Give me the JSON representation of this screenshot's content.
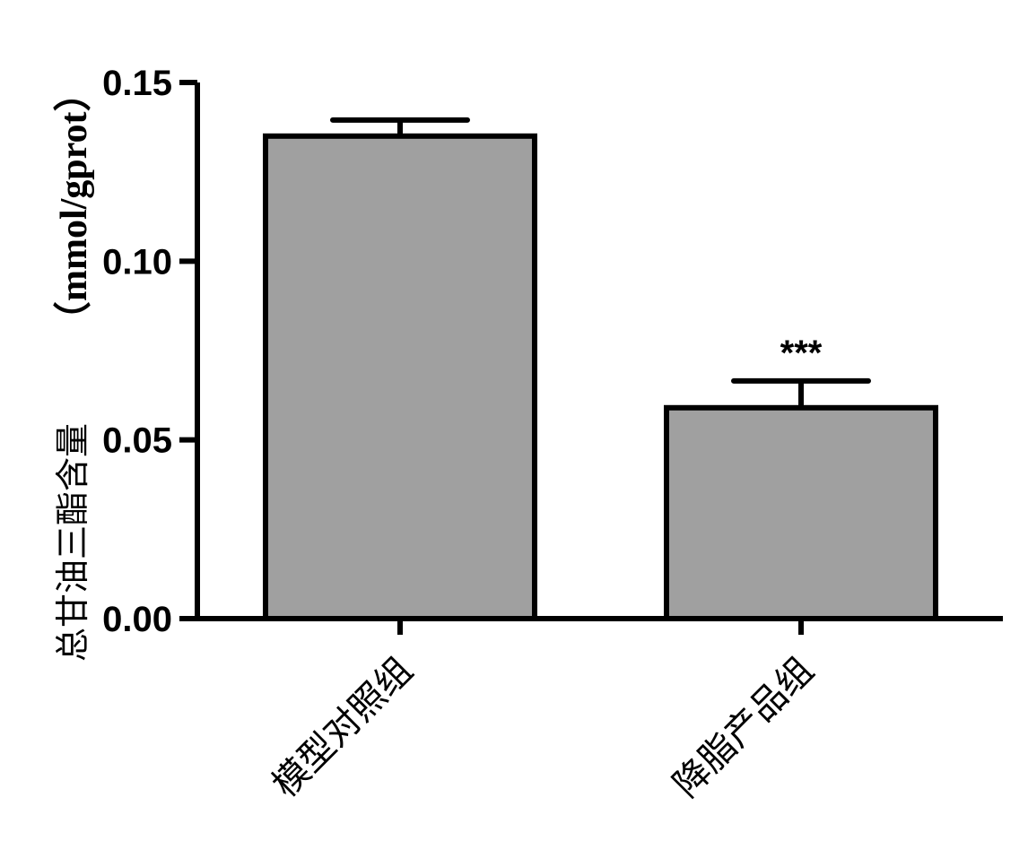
{
  "chart_data": {
    "type": "bar",
    "categories": [
      "模型对照组",
      "降脂产品组"
    ],
    "values": [
      0.135,
      0.059
    ],
    "errors": [
      0.0045,
      0.0075
    ],
    "annotations": [
      "",
      "***"
    ],
    "ylabel_cn": "总甘油三酯含量",
    "ylabel_unit": "（mmol/gprot）",
    "ylim": [
      0,
      0.15
    ],
    "yticks": [
      "0.00",
      "0.05",
      "0.10",
      "0.15"
    ],
    "bar_color": "#a0a0a0",
    "grid": false
  }
}
